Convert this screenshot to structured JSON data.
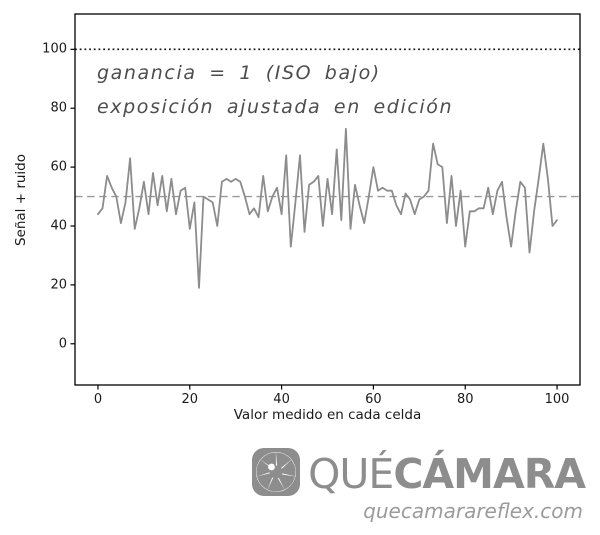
{
  "chart_data": {
    "type": "line",
    "title": "",
    "xlabel": "Valor medido en cada celda",
    "ylabel": "Señal + ruido",
    "xlim": [
      -5,
      105
    ],
    "ylim": [
      -14,
      112
    ],
    "xticks": [
      0,
      20,
      40,
      60,
      80,
      100
    ],
    "yticks": [
      0,
      20,
      40,
      60,
      80,
      100
    ],
    "grid": false,
    "legend": null,
    "x_start": 0,
    "x_step": 1,
    "values": [
      44,
      46,
      57,
      53,
      50,
      41,
      48,
      63,
      39,
      46,
      55,
      44,
      58,
      47,
      57,
      45,
      56,
      44,
      52,
      53,
      39,
      48,
      19,
      50,
      49,
      48,
      40,
      55,
      56,
      55,
      56,
      55,
      50,
      44,
      46,
      43,
      57,
      45,
      50,
      53,
      44,
      64,
      33,
      48,
      64,
      38,
      54,
      55,
      57,
      40,
      56,
      44,
      66,
      42,
      73,
      39,
      54,
      47,
      41,
      50,
      60,
      52,
      53,
      52,
      52,
      47,
      44,
      51,
      49,
      44,
      49,
      50,
      52,
      68,
      61,
      60,
      41,
      57,
      40,
      52,
      33,
      45,
      45,
      46,
      46,
      53,
      44,
      52,
      55,
      43,
      33,
      45,
      55,
      53,
      31,
      45,
      56,
      68,
      56,
      40,
      42
    ],
    "series_color": "#8c8c8c",
    "reference_lines": [
      {
        "y": 100,
        "style": "dotted",
        "color": "#111111"
      },
      {
        "y": 50,
        "style": "dashed",
        "color": "#999999"
      }
    ],
    "annotation": {
      "line1": "ganancia = 1  (ISO bajo)",
      "line2": "exposición ajustada en edición"
    }
  },
  "watermark": {
    "icon": "camera-shutter-icon",
    "brand_light": "QUÉ",
    "brand_bold": "CÁMARA",
    "domain": "quecamarareflex.com",
    "color": "#8d8d8d"
  }
}
